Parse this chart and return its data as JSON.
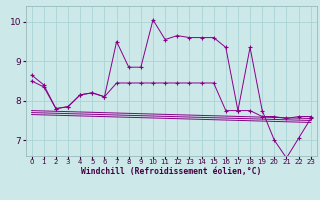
{
  "xlabel": "Windchill (Refroidissement éolien,°C)",
  "bg_color": "#cce8e8",
  "grid_color": "#aad4d4",
  "line_color": "#880088",
  "xlim": [
    -0.5,
    23.5
  ],
  "ylim": [
    6.6,
    10.4
  ],
  "yticks": [
    7,
    8,
    9,
    10
  ],
  "xticks": [
    0,
    1,
    2,
    3,
    4,
    5,
    6,
    7,
    8,
    9,
    10,
    11,
    12,
    13,
    14,
    15,
    16,
    17,
    18,
    19,
    20,
    21,
    22,
    23
  ],
  "main_x": [
    0,
    1,
    2,
    3,
    4,
    5,
    6,
    7,
    8,
    9,
    10,
    11,
    12,
    13,
    14,
    15,
    16,
    17,
    18,
    19,
    20,
    21,
    22,
    23
  ],
  "main_y": [
    8.65,
    8.4,
    7.8,
    7.85,
    8.15,
    8.2,
    8.1,
    9.5,
    8.85,
    8.85,
    10.05,
    9.55,
    9.65,
    9.6,
    9.6,
    9.6,
    9.35,
    7.75,
    9.35,
    7.75,
    7.0,
    6.55,
    7.05,
    7.55
  ],
  "flat_x": [
    0,
    1,
    2,
    3,
    4,
    5,
    6,
    7,
    8,
    9,
    10,
    11,
    12,
    13,
    14,
    15,
    16,
    17,
    18,
    19,
    20,
    21,
    22,
    23
  ],
  "flat_y": [
    8.5,
    8.35,
    7.8,
    7.85,
    8.15,
    8.2,
    8.1,
    8.45,
    8.45,
    8.45,
    8.45,
    8.45,
    8.45,
    8.45,
    8.45,
    8.45,
    7.75,
    7.75,
    7.75,
    7.6,
    7.6,
    7.55,
    7.6,
    7.6
  ],
  "env_lines": [
    [
      [
        0,
        23
      ],
      [
        7.75,
        7.55
      ]
    ],
    [
      [
        0,
        23
      ],
      [
        7.7,
        7.5
      ]
    ],
    [
      [
        0,
        23
      ],
      [
        7.65,
        7.45
      ]
    ]
  ]
}
